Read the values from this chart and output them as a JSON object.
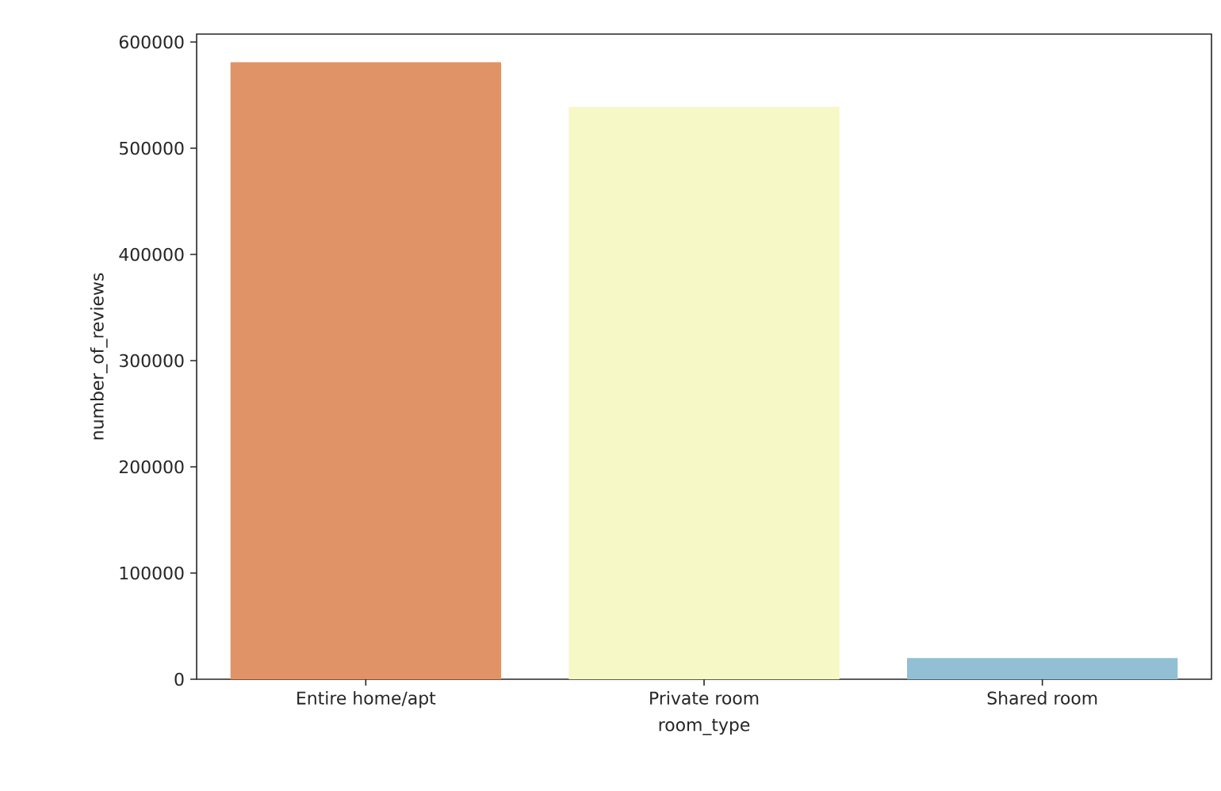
{
  "chart_data": {
    "type": "bar",
    "xlabel": "room_type",
    "ylabel": "number_of_reviews",
    "categories": [
      "Entire home/apt",
      "Private room",
      "Shared room"
    ],
    "values": [
      581000,
      539000,
      20000
    ],
    "colors": [
      "#e09366",
      "#f6f8c6",
      "#92bfd3"
    ],
    "ylim": [
      0,
      607500
    ],
    "yticks": [
      0,
      100000,
      200000,
      300000,
      400000,
      500000,
      600000
    ],
    "grid": false
  }
}
